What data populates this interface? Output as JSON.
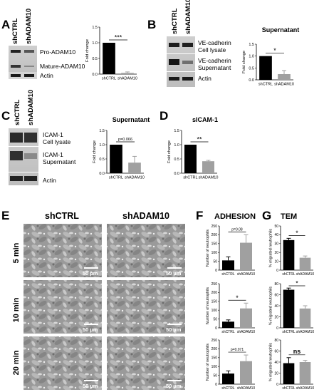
{
  "panels": {
    "A": {
      "letter": "A",
      "lanes": [
        "shCTRL",
        "shADAM10"
      ],
      "blot_labels": [
        "Pro-ADAM10",
        "Mature-ADAM10",
        "Actin"
      ]
    },
    "B": {
      "letter": "B",
      "lanes": [
        "shCTRL",
        "shADAM10"
      ],
      "blot_labels": [
        "VE-cadherin",
        "Cell lysate",
        "VE-cadherin",
        "Supernatant",
        "Actin"
      ]
    },
    "C": {
      "letter": "C",
      "lanes": [
        "shCTRL",
        "shADAM10"
      ],
      "blot_labels": [
        "ICAM-1",
        "Cell lysate",
        "ICAM-1",
        "Supernatant",
        "Actin"
      ]
    },
    "D": {
      "letter": "D"
    },
    "E": {
      "letter": "E",
      "columns": [
        "shCTRL",
        "shADAM10"
      ],
      "rows": [
        "5 min",
        "10 min",
        "20 min"
      ],
      "scale_bar": "50 µm"
    },
    "F": {
      "letter": "F"
    },
    "G": {
      "letter": "G"
    }
  },
  "chart_data": [
    {
      "id": "A",
      "type": "bar",
      "title": "",
      "ylabel": "Fold change",
      "categories": [
        "shCTRL",
        "shADAM10"
      ],
      "values": [
        1.0,
        0.04
      ],
      "errors": [
        0,
        0.03
      ],
      "ylim": [
        0,
        1.5
      ],
      "yticks": [
        "0.0",
        "0.5",
        "1.0",
        "1.5"
      ],
      "significance": "***",
      "colors": [
        "#000000",
        "#a0a0a0"
      ]
    },
    {
      "id": "B",
      "type": "bar",
      "title": "Supernatant",
      "ylabel": "Fold change",
      "categories": [
        "shCTRL",
        "shADAM10"
      ],
      "values": [
        1.0,
        0.24
      ],
      "errors": [
        0,
        0.15
      ],
      "ylim": [
        0,
        1.5
      ],
      "yticks": [
        "0.0",
        "0.5",
        "1.0",
        "1.5"
      ],
      "significance": "*",
      "colors": [
        "#000000",
        "#a0a0a0"
      ]
    },
    {
      "id": "C",
      "type": "bar",
      "title": "Supernatant",
      "ylabel": "Fold change",
      "categories": [
        "shCTRL",
        "shADAM10"
      ],
      "values": [
        1.0,
        0.37
      ],
      "errors": [
        0,
        0.22
      ],
      "ylim": [
        0,
        1.5
      ],
      "yticks": [
        "0.0",
        "0.5",
        "1.0",
        "1.5"
      ],
      "significance": "p=0.066",
      "colors": [
        "#000000",
        "#a0a0a0"
      ]
    },
    {
      "id": "D",
      "type": "bar",
      "title": "sICAM-1",
      "ylabel": "Fold change",
      "categories": [
        "shCTRL",
        "shADAM10"
      ],
      "values": [
        1.0,
        0.42
      ],
      "errors": [
        0,
        0.03
      ],
      "ylim": [
        0,
        1.5
      ],
      "yticks": [
        "0.0",
        "0.5",
        "1.0",
        "1.5"
      ],
      "significance": "**",
      "colors": [
        "#000000",
        "#a0a0a0"
      ]
    },
    {
      "id": "F1",
      "group": "ADHESION",
      "type": "bar",
      "title": "",
      "ylabel": "Number of neutrophils",
      "categories": [
        "shCTRL",
        "shADAM10"
      ],
      "values": [
        55,
        155
      ],
      "errors": [
        20,
        45
      ],
      "ylim": [
        0,
        250
      ],
      "yticks": [
        "0",
        "50",
        "100",
        "150",
        "200",
        "250"
      ],
      "significance": "p=0.08",
      "colors": [
        "#000000",
        "#a0a0a0"
      ]
    },
    {
      "id": "F2",
      "group": "ADHESION",
      "type": "bar",
      "title": "",
      "ylabel": "Number of neutrophils",
      "categories": [
        "shCTRL",
        "shADAM10"
      ],
      "values": [
        35,
        110
      ],
      "errors": [
        10,
        30
      ],
      "ylim": [
        0,
        250
      ],
      "yticks": [
        "0",
        "50",
        "100",
        "150",
        "200",
        "250"
      ],
      "significance": "*",
      "colors": [
        "#000000",
        "#a0a0a0"
      ]
    },
    {
      "id": "F3",
      "group": "ADHESION",
      "type": "bar",
      "title": "",
      "ylabel": "Number of neutrophils",
      "categories": [
        "shCTRL",
        "shADAM10"
      ],
      "values": [
        60,
        130
      ],
      "errors": [
        15,
        35
      ],
      "ylim": [
        0,
        250
      ],
      "yticks": [
        "0",
        "50",
        "100",
        "150",
        "200",
        "250"
      ],
      "significance": "p=0.071",
      "colors": [
        "#000000",
        "#a0a0a0"
      ]
    },
    {
      "id": "G1",
      "group": "TEM",
      "type": "bar",
      "title": "",
      "ylabel": "% migrated neutrophils",
      "categories": [
        "shCTRL",
        "shADAM10"
      ],
      "values": [
        34,
        14
      ],
      "errors": [
        2,
        2
      ],
      "ylim": [
        0,
        50
      ],
      "yticks": [
        "0",
        "10",
        "20",
        "30",
        "40",
        "50"
      ],
      "significance": "*",
      "colors": [
        "#000000",
        "#a0a0a0"
      ]
    },
    {
      "id": "G2",
      "group": "TEM",
      "type": "bar",
      "title": "",
      "ylabel": "% migrated neutrophils",
      "categories": [
        "shCTRL",
        "shADAM10"
      ],
      "values": [
        69,
        35
      ],
      "errors": [
        3,
        5
      ],
      "ylim": [
        0,
        80
      ],
      "yticks": [
        "0",
        "20",
        "40",
        "60",
        "80"
      ],
      "significance": "*",
      "colors": [
        "#000000",
        "#a0a0a0"
      ]
    },
    {
      "id": "G3",
      "group": "TEM",
      "type": "bar",
      "title": "",
      "ylabel": "% migrated neutrophils",
      "categories": [
        "shCTRL",
        "shADAM10"
      ],
      "values": [
        38,
        40
      ],
      "errors": [
        10,
        3
      ],
      "ylim": [
        0,
        80
      ],
      "yticks": [
        "0",
        "20",
        "40",
        "60",
        "80"
      ],
      "significance": "ns",
      "colors": [
        "#000000",
        "#a0a0a0"
      ]
    }
  ]
}
